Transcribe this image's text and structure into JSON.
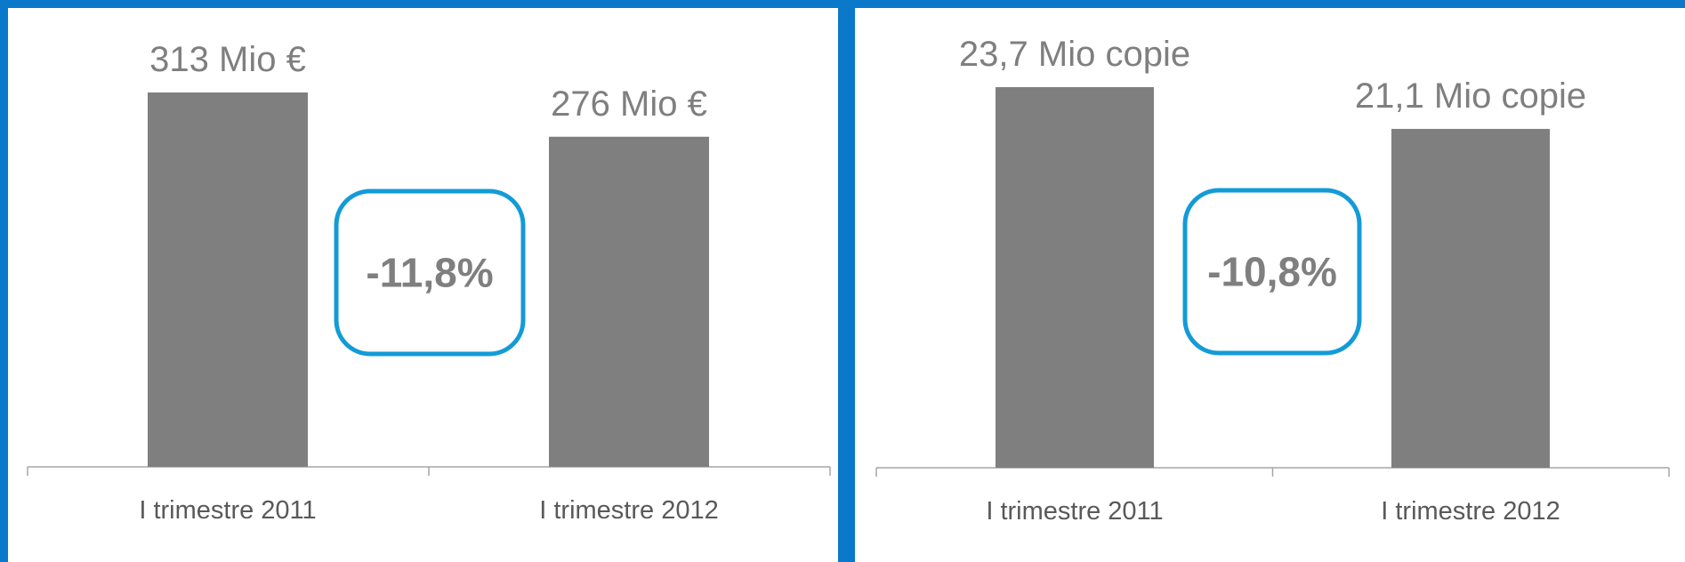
{
  "colors": {
    "background": "#0a79c9",
    "bar": "#7f7f7f",
    "axis": "#a6a6a6",
    "badge_border": "#139bd7",
    "text": "#7f7f7f"
  },
  "chart_data": [
    {
      "type": "bar",
      "categories": [
        "I trimestre 2011",
        "I trimestre 2012"
      ],
      "values": [
        313,
        276
      ],
      "data_labels": [
        "313 Mio €",
        "276 Mio €"
      ],
      "unit": "Mio €",
      "change_label": "-11,8%",
      "grid": false,
      "ylim": [
        0,
        313
      ]
    },
    {
      "type": "bar",
      "categories": [
        "I trimestre 2011",
        "I trimestre 2012"
      ],
      "values": [
        23.7,
        21.1
      ],
      "data_labels": [
        "23,7 Mio copie",
        "21,1 Mio copie"
      ],
      "unit": "Mio copie",
      "change_label": "-10,8%",
      "grid": false,
      "ylim": [
        0,
        23.7
      ]
    }
  ]
}
